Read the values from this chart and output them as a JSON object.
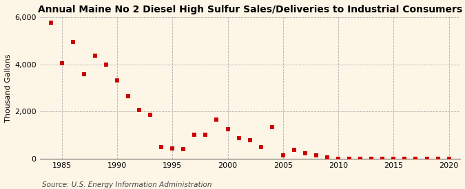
{
  "title": "Annual Maine No 2 Diesel High Sulfur Sales/Deliveries to Industrial Consumers",
  "ylabel": "Thousand Gallons",
  "source": "Source: U.S. Energy Information Administration",
  "background_color": "#fdf5e6",
  "plot_bg_color": "#fdf5e6",
  "dot_color": "#cc0000",
  "years": [
    1984,
    1985,
    1986,
    1987,
    1988,
    1989,
    1990,
    1991,
    1992,
    1993,
    1994,
    1995,
    1996,
    1997,
    1998,
    1999,
    2000,
    2001,
    2002,
    2003,
    2004,
    2005,
    2006,
    2007,
    2008,
    2009,
    2010,
    2011,
    2012,
    2013,
    2014,
    2015,
    2016,
    2017,
    2018,
    2019,
    2020
  ],
  "values": [
    5750,
    4050,
    4950,
    3580,
    4380,
    3990,
    3320,
    2640,
    2080,
    1870,
    500,
    430,
    420,
    1020,
    1010,
    1660,
    1250,
    870,
    800,
    510,
    1340,
    150,
    380,
    240,
    150,
    60,
    20,
    15,
    10,
    10,
    10,
    10,
    10,
    10,
    10,
    10,
    10
  ],
  "ylim": [
    0,
    6000
  ],
  "xlim": [
    1983,
    2021
  ],
  "yticks": [
    0,
    2000,
    4000,
    6000
  ],
  "xticks": [
    1985,
    1990,
    1995,
    2000,
    2005,
    2010,
    2015,
    2020
  ],
  "title_fontsize": 10,
  "label_fontsize": 8,
  "tick_fontsize": 8,
  "source_fontsize": 7.5
}
